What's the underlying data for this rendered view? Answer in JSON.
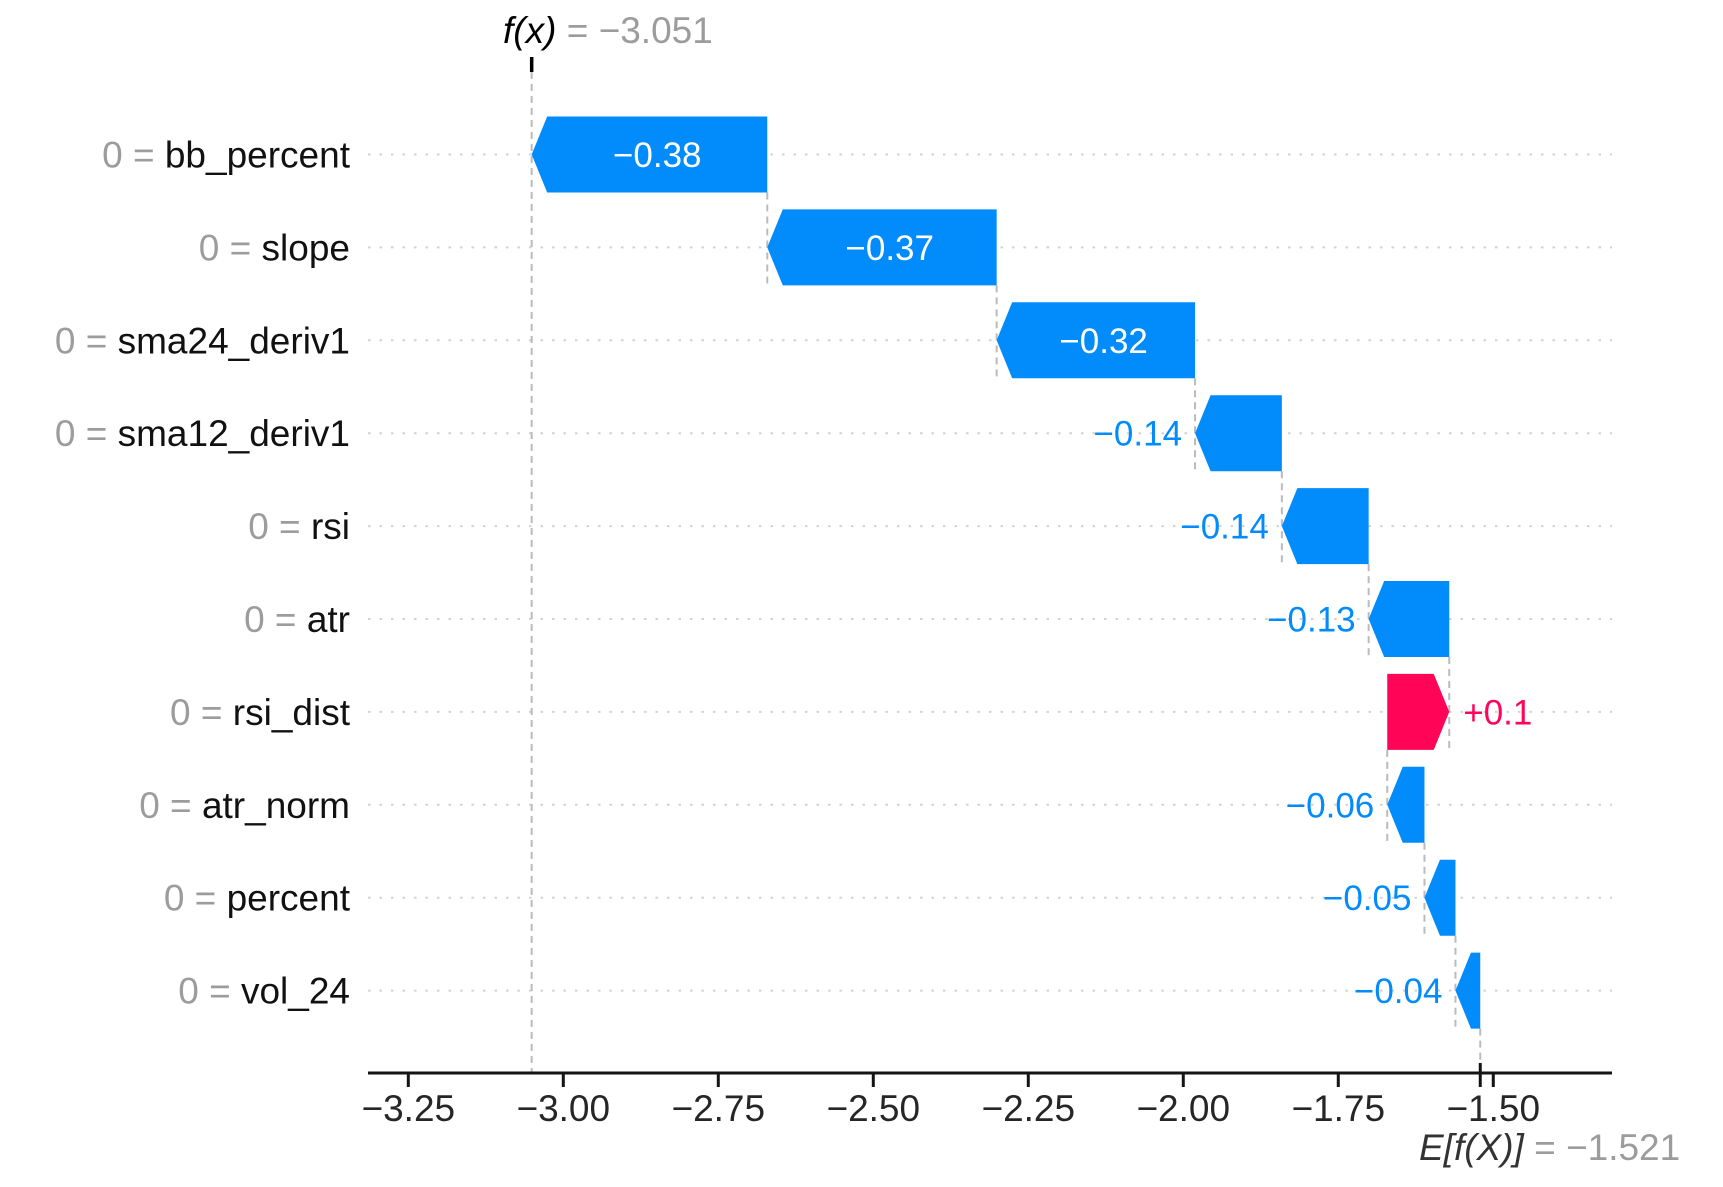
{
  "chart_data": {
    "type": "bar",
    "subtype": "shap-waterfall",
    "header": {
      "fx_math": "f(x)",
      "fx_eq": " = −3.051"
    },
    "footer": {
      "ef_math": "E[f(X)]",
      "ef_eq": " = −1.521"
    },
    "fx_value": -3.051,
    "base_value": -1.521,
    "xlim": [
      -3.315,
      -1.3085
    ],
    "grid": true,
    "x_ticks": {
      "values": [
        -3.25,
        -3.0,
        -2.75,
        -2.5,
        -2.25,
        -2.0,
        -1.75,
        -1.5
      ],
      "labels": [
        "−3.25",
        "−3.00",
        "−2.75",
        "−2.50",
        "−2.25",
        "−2.00",
        "−1.75",
        "−1.50"
      ]
    },
    "rows": [
      {
        "feature": "bb_percent",
        "value": 0,
        "prefix": "0 = ",
        "shap": -0.38,
        "label": "−0.38",
        "label_placement": "inside"
      },
      {
        "feature": "slope",
        "value": 0,
        "prefix": "0 = ",
        "shap": -0.37,
        "label": "−0.37",
        "label_placement": "inside"
      },
      {
        "feature": "sma24_deriv1",
        "value": 0,
        "prefix": "0 = ",
        "shap": -0.32,
        "label": "−0.32",
        "label_placement": "inside"
      },
      {
        "feature": "sma12_deriv1",
        "value": 0,
        "prefix": "0 = ",
        "shap": -0.14,
        "label": "−0.14",
        "label_placement": "outside"
      },
      {
        "feature": "rsi",
        "value": 0,
        "prefix": "0 = ",
        "shap": -0.14,
        "label": "−0.14",
        "label_placement": "outside"
      },
      {
        "feature": "atr",
        "value": 0,
        "prefix": "0 = ",
        "shap": -0.13,
        "label": "−0.13",
        "label_placement": "outside"
      },
      {
        "feature": "rsi_dist",
        "value": 0,
        "prefix": "0 = ",
        "shap": 0.1,
        "label": "+0.1",
        "label_placement": "outside"
      },
      {
        "feature": "atr_norm",
        "value": 0,
        "prefix": "0 = ",
        "shap": -0.06,
        "label": "−0.06",
        "label_placement": "outside"
      },
      {
        "feature": "percent",
        "value": 0,
        "prefix": "0 = ",
        "shap": -0.05,
        "label": "−0.05",
        "label_placement": "outside"
      },
      {
        "feature": "vol_24",
        "value": 0,
        "prefix": "0 = ",
        "shap": -0.04,
        "label": "−0.04",
        "label_placement": "outside"
      }
    ],
    "colors": {
      "positive": "#ff0457",
      "negative": "#028bfb",
      "grid": "#d2d2d2",
      "connector": "#bbbbbb",
      "axis": "#141414",
      "tick_text": "#262626",
      "muted_text": "#9c9c9c",
      "feature_text": "#111111"
    }
  }
}
